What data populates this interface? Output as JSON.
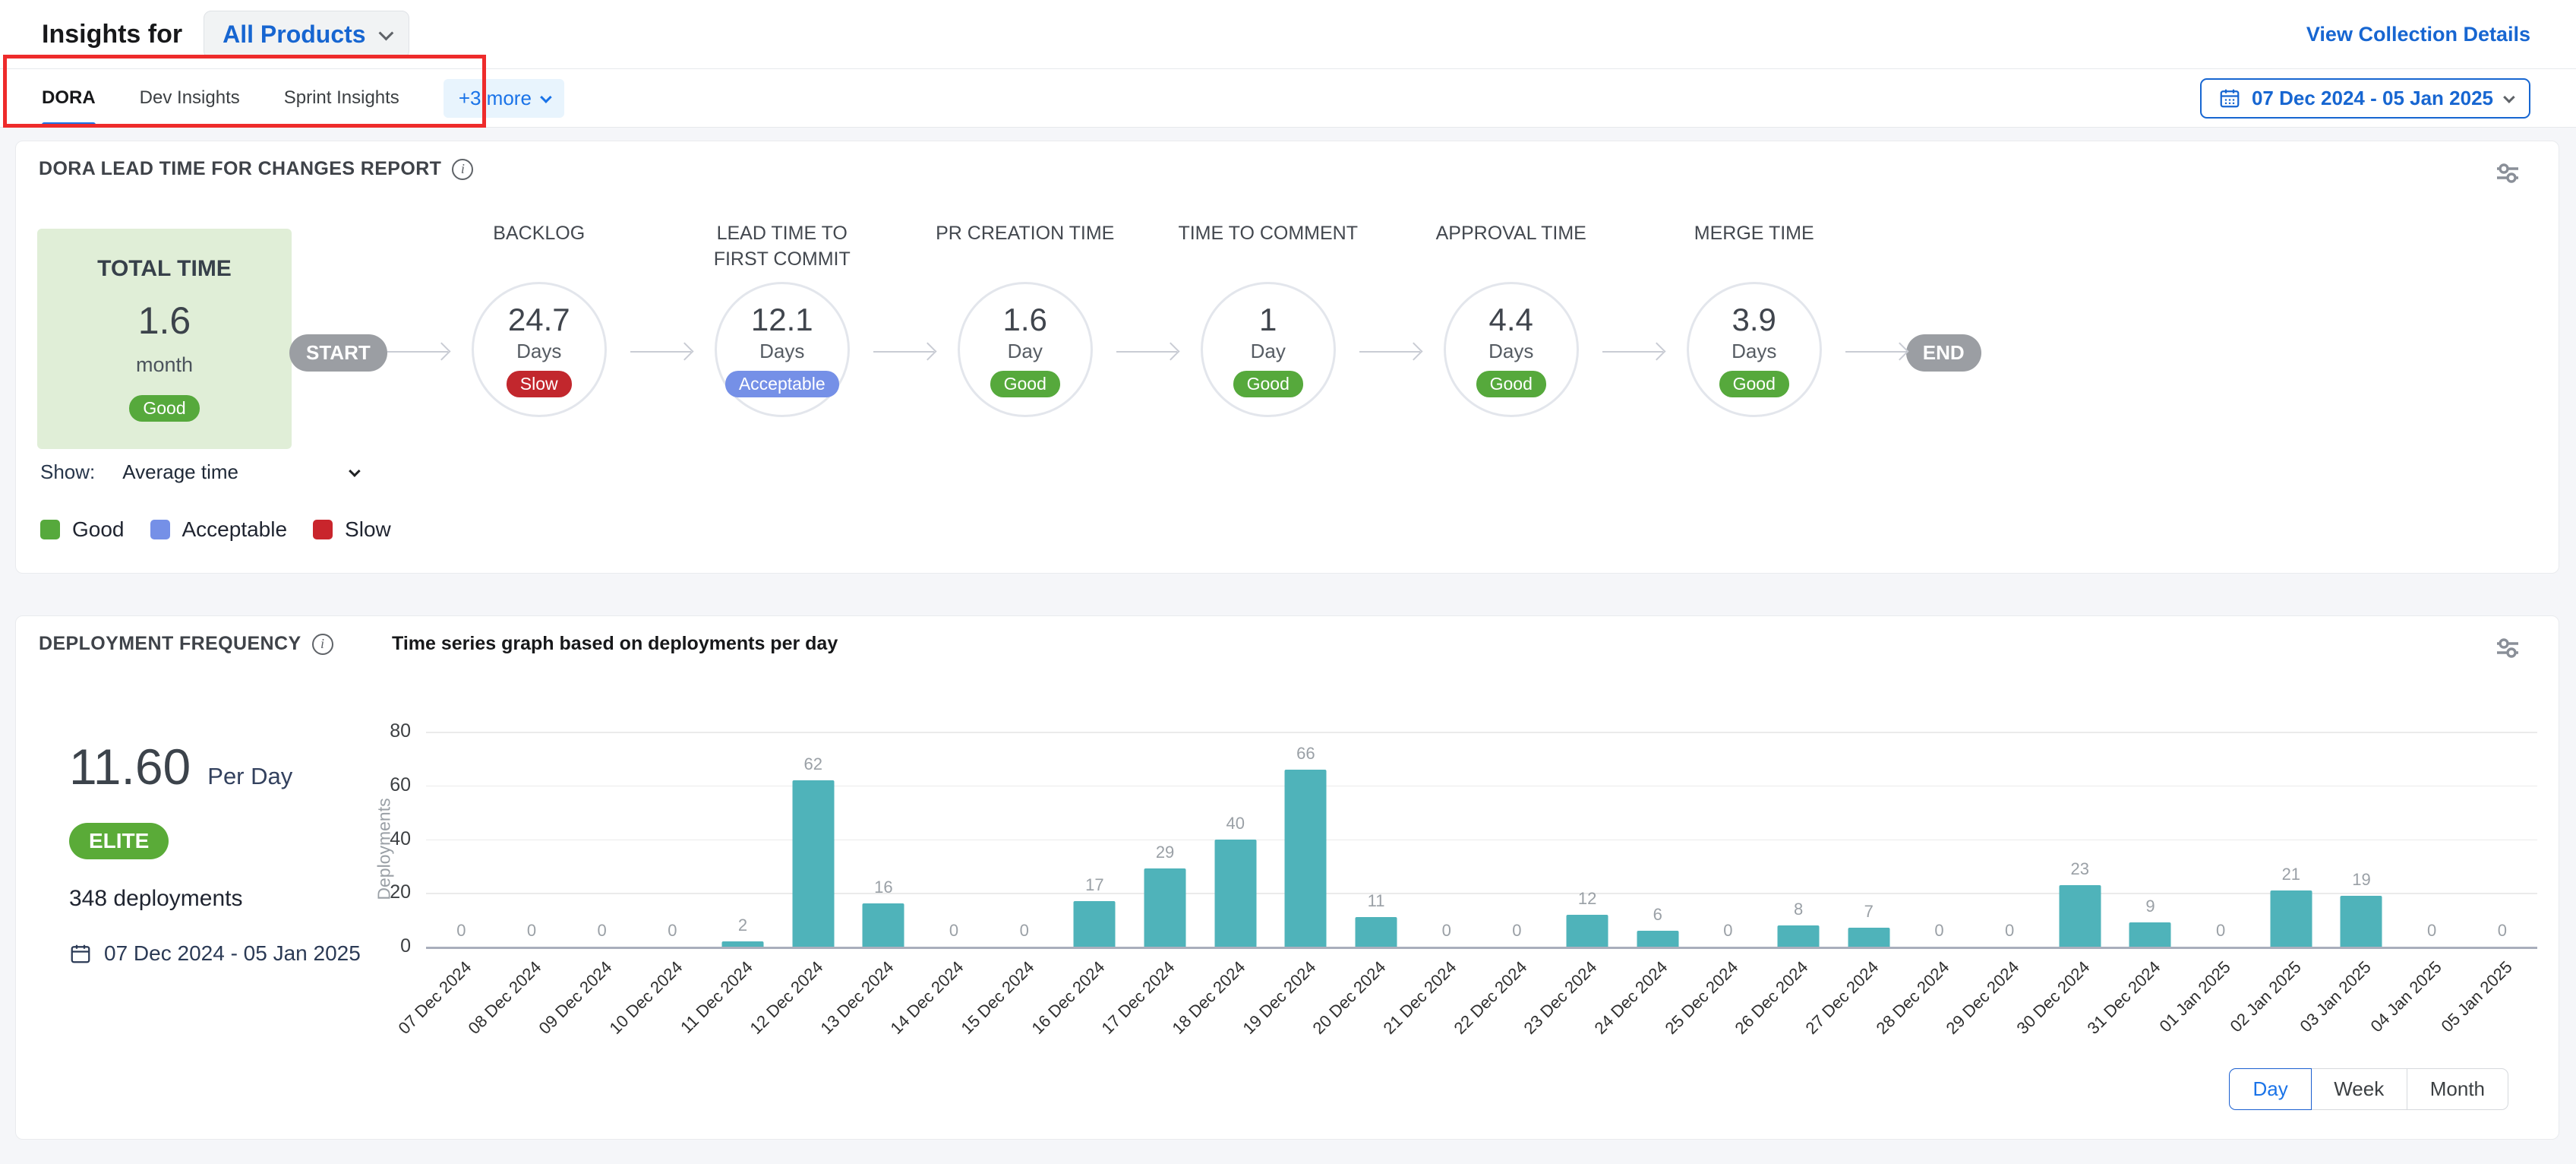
{
  "colors": {
    "accent": "#1a73e8",
    "link_blue": "#1766d1",
    "good": "#56a93c",
    "acceptable": "#7590e7",
    "slow": "#c2272d",
    "elite": "#5aab38",
    "bar_teal": "#4fb3ba",
    "total_panel_bg": "#e0eed7"
  },
  "header": {
    "title": "Insights for",
    "product_selector": "All Products",
    "view_collection_link": "View Collection Details"
  },
  "tabs": {
    "items": [
      "DORA",
      "Dev Insights",
      "Sprint Insights"
    ],
    "more_label": "+3 more",
    "active": "DORA"
  },
  "date_range": "07 Dec 2024 - 05 Jan 2025",
  "lead_time": {
    "section_title": "DORA LEAD TIME FOR CHANGES REPORT",
    "total": {
      "label": "TOTAL TIME",
      "value": "1.6",
      "unit": "month",
      "status": "Good"
    },
    "start_label": "START",
    "end_label": "END",
    "stages": [
      {
        "label": "BACKLOG",
        "value": "24.7",
        "unit": "Days",
        "status": "Slow"
      },
      {
        "label": "LEAD TIME TO FIRST COMMIT",
        "value": "12.1",
        "unit": "Days",
        "status": "Acceptable"
      },
      {
        "label": "PR CREATION TIME",
        "value": "1.6",
        "unit": "Day",
        "status": "Good"
      },
      {
        "label": "TIME TO COMMENT",
        "value": "1",
        "unit": "Day",
        "status": "Good"
      },
      {
        "label": "APPROVAL TIME",
        "value": "4.4",
        "unit": "Days",
        "status": "Good"
      },
      {
        "label": "MERGE TIME",
        "value": "3.9",
        "unit": "Days",
        "status": "Good"
      }
    ],
    "show_label": "Show:",
    "show_value": "Average time",
    "legend": [
      {
        "label": "Good",
        "color": "#56a93c"
      },
      {
        "label": "Acceptable",
        "color": "#7590e7"
      },
      {
        "label": "Slow",
        "color": "#c9252c"
      }
    ]
  },
  "deployment": {
    "section_title": "DEPLOYMENT FREQUENCY",
    "rate_value": "11.60",
    "rate_unit": "Per Day",
    "tier_badge": "ELITE",
    "total_label": "348 deployments",
    "date_range": "07 Dec 2024 - 05 Jan 2025",
    "granularity": {
      "options": [
        "Day",
        "Week",
        "Month"
      ],
      "active": "Day"
    }
  },
  "chart_data": {
    "type": "bar",
    "title": "Time series graph based on deployments per day",
    "xlabel": "",
    "ylabel": "Deployments",
    "ylim": [
      0,
      80
    ],
    "yticks": [
      0,
      20,
      40,
      60,
      80
    ],
    "grid": true,
    "legend_position": "none",
    "bar_color": "#4fb3ba",
    "categories": [
      "07 Dec 2024",
      "08 Dec 2024",
      "09 Dec 2024",
      "10 Dec 2024",
      "11 Dec 2024",
      "12 Dec 2024",
      "13 Dec 2024",
      "14 Dec 2024",
      "15 Dec 2024",
      "16 Dec 2024",
      "17 Dec 2024",
      "18 Dec 2024",
      "19 Dec 2024",
      "20 Dec 2024",
      "21 Dec 2024",
      "22 Dec 2024",
      "23 Dec 2024",
      "24 Dec 2024",
      "25 Dec 2024",
      "26 Dec 2024",
      "27 Dec 2024",
      "28 Dec 2024",
      "29 Dec 2024",
      "30 Dec 2024",
      "31 Dec 2024",
      "01 Jan 2025",
      "02 Jan 2025",
      "03 Jan 2025",
      "04 Jan 2025",
      "05 Jan 2025"
    ],
    "values": [
      0,
      0,
      0,
      0,
      2,
      62,
      16,
      0,
      0,
      17,
      29,
      40,
      66,
      11,
      0,
      0,
      12,
      6,
      0,
      8,
      7,
      0,
      0,
      23,
      9,
      0,
      21,
      19,
      0,
      0
    ]
  }
}
